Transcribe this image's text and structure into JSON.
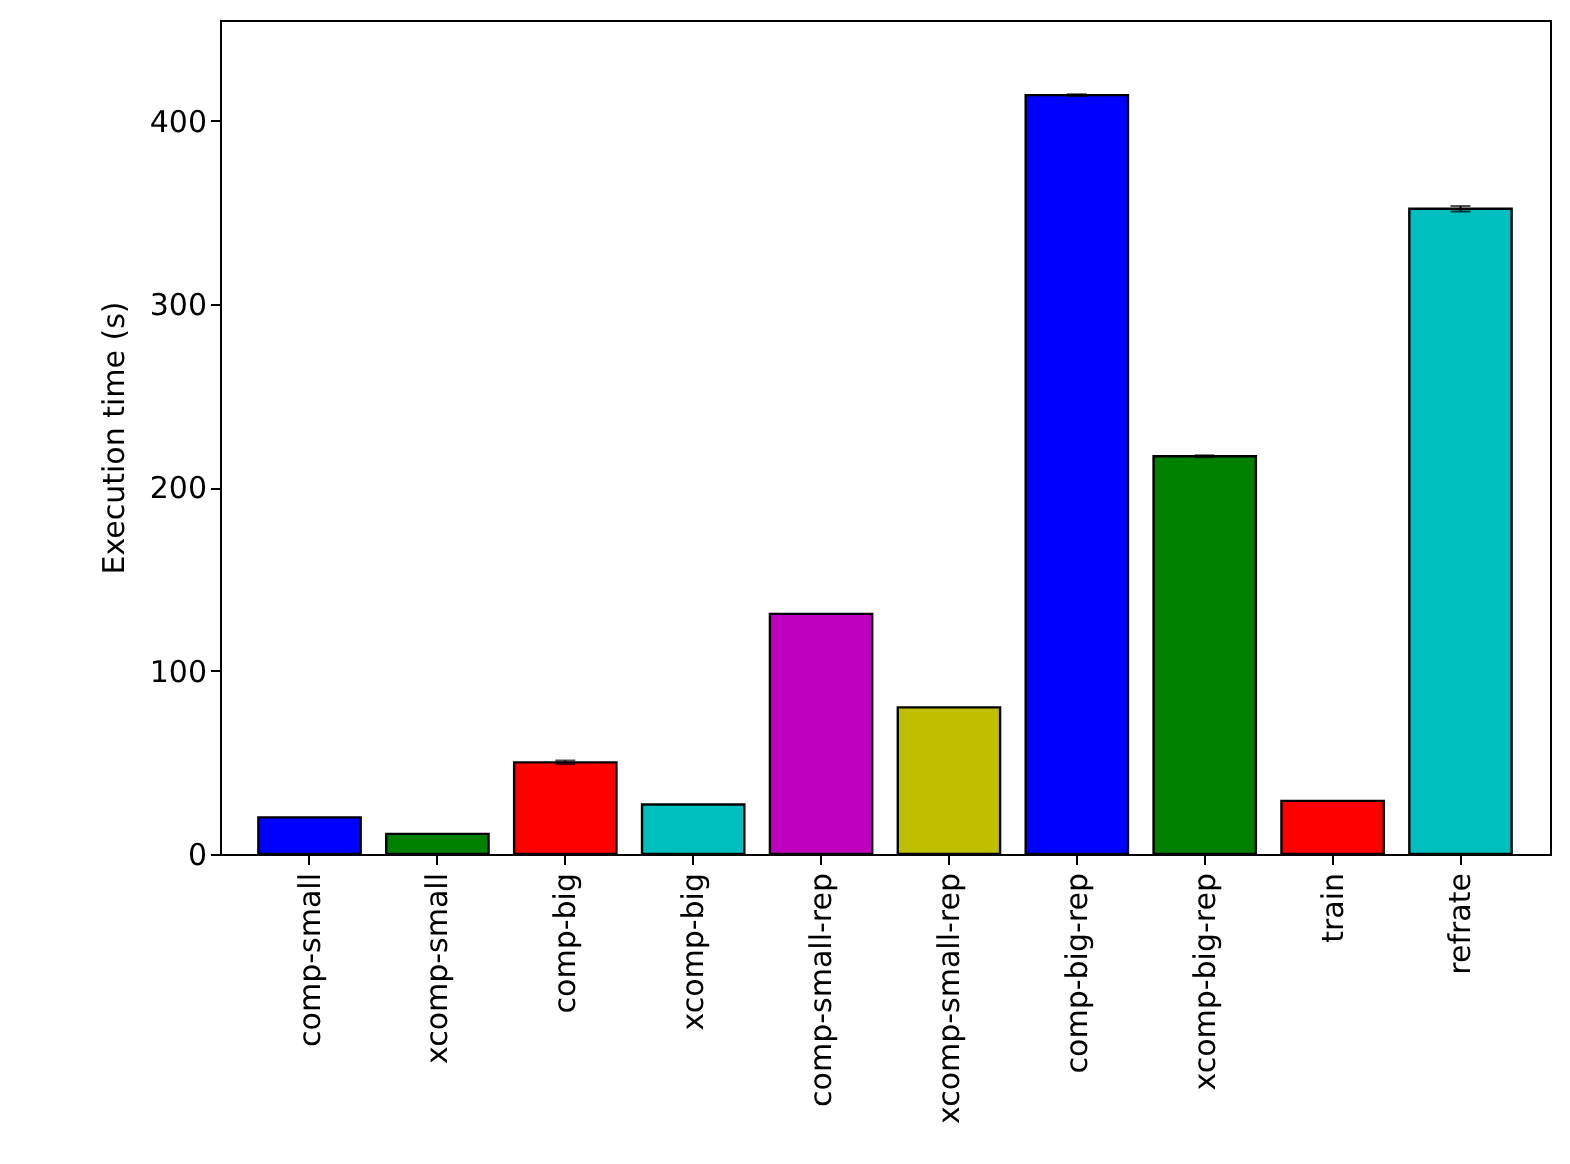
{
  "chart_data": {
    "type": "bar",
    "ylabel": "Execution time (s)",
    "categories": [
      "comp-small",
      "xcomp-small",
      "comp-big",
      "xcomp-big",
      "comp-small-rep",
      "xcomp-small-rep",
      "comp-big-rep",
      "xcomp-big-rep",
      "train",
      "refrate"
    ],
    "values": [
      20,
      11,
      50,
      27,
      131,
      80,
      414,
      217,
      29,
      352
    ],
    "colors": [
      "#0000ff",
      "#008000",
      "#ff0000",
      "#00bfbf",
      "#bf00bf",
      "#bfbf00",
      "#0000ff",
      "#008000",
      "#ff0000",
      "#00bfbf"
    ],
    "errors": [
      null,
      null,
      1,
      null,
      null,
      null,
      0.5,
      0.5,
      null,
      1.5
    ],
    "ylim": [
      0,
      455
    ],
    "yticks": [
      0,
      100,
      200,
      300,
      400
    ],
    "grid": false
  }
}
